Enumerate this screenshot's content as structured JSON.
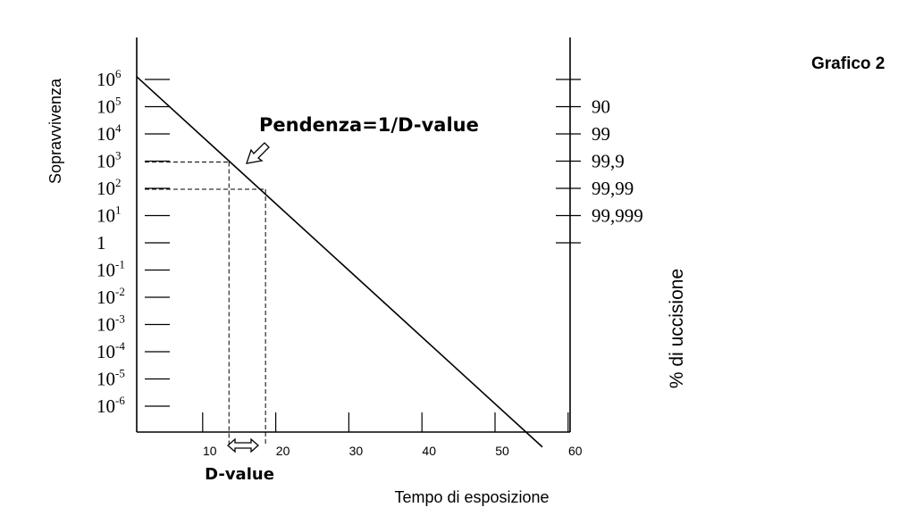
{
  "chart_data": {
    "type": "line",
    "title": "Grafico 2",
    "xlabel": "Tempo di esposizione",
    "ylabel": "Sopravvivenza",
    "y2label": "% di uccisione",
    "x_ticks": [
      {
        "value": 10,
        "label": "10"
      },
      {
        "value": 20,
        "label": "20"
      },
      {
        "value": 30,
        "label": "30"
      },
      {
        "value": 40,
        "label": "40"
      },
      {
        "value": 50,
        "label": "50"
      },
      {
        "value": 60,
        "label": "60"
      }
    ],
    "x_minor_ticks": [
      10,
      20,
      30,
      40,
      50,
      60
    ],
    "y_log_ticks": [
      {
        "exp": 6,
        "base": "10",
        "sup": "6"
      },
      {
        "exp": 5,
        "base": "10",
        "sup": "5"
      },
      {
        "exp": 4,
        "base": "10",
        "sup": "4"
      },
      {
        "exp": 3,
        "base": "10",
        "sup": "3"
      },
      {
        "exp": 2,
        "base": "10",
        "sup": "2"
      },
      {
        "exp": 1,
        "base": "10",
        "sup": "1"
      },
      {
        "exp": 0,
        "base": "1",
        "sup": ""
      },
      {
        "exp": -1,
        "base": "10",
        "sup": "-1"
      },
      {
        "exp": -2,
        "base": "10",
        "sup": "-2"
      },
      {
        "exp": -3,
        "base": "10",
        "sup": "-3"
      },
      {
        "exp": -4,
        "base": "10",
        "sup": "-4"
      },
      {
        "exp": -5,
        "base": "10",
        "sup": "-5"
      },
      {
        "exp": -6,
        "base": "10",
        "sup": "-6"
      }
    ],
    "y2_ticks": [
      {
        "exp": 6,
        "label": ""
      },
      {
        "exp": 5,
        "label": "90"
      },
      {
        "exp": 4,
        "label": "99"
      },
      {
        "exp": 3,
        "label": "99,9"
      },
      {
        "exp": 2,
        "label": "99,99"
      },
      {
        "exp": 1,
        "label": "99,999"
      },
      {
        "exp": 0,
        "label": ""
      }
    ],
    "xlim": [
      0,
      60
    ],
    "series": [
      {
        "x": [
          0,
          55.5
        ],
        "y_exp": [
          6.1,
          -7.5
        ]
      }
    ],
    "guides": [
      {
        "x": 12.5,
        "y_exp": 3
      },
      {
        "x": 17.5,
        "y_exp": 2
      }
    ],
    "annotations": {
      "slope_label": "Pendenza=1/D-value",
      "d_value_label": "D-value"
    },
    "grid": false,
    "line_color": "#000000"
  }
}
